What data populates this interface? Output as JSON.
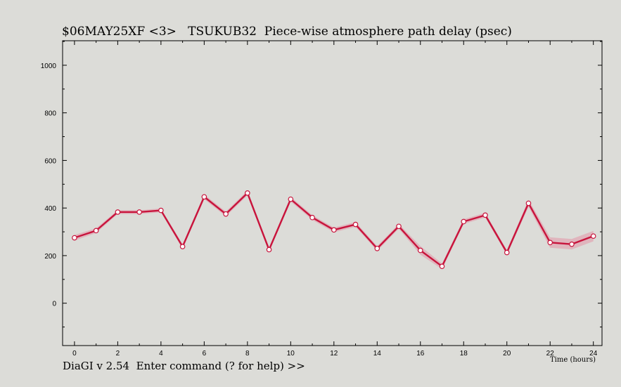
{
  "window": {
    "title": "$06MAY25XF <3>   TSUKUB32  Piece-wise atmosphere path delay (psec)",
    "prompt": "DiaGI v 2.54  Enter command (? for help) >>"
  },
  "colors": {
    "background": "#dcdcd8",
    "line": "#c8143c",
    "band": "#e2a8b4",
    "marker_fill": "#ffffff"
  },
  "chart_data": {
    "type": "line",
    "title": "$06MAY25XF <3>   TSUKUB32  Piece-wise atmosphere path delay (psec)",
    "xlabel": "Time (hours)",
    "ylabel": "",
    "xlim": [
      -0.55,
      24.4
    ],
    "ylim": [
      -178,
      1103
    ],
    "xticks": [
      0,
      2,
      4,
      6,
      8,
      10,
      12,
      14,
      16,
      18,
      20,
      22,
      24
    ],
    "yticks": [
      0,
      200,
      400,
      600,
      800,
      1000
    ],
    "grid": false,
    "series": [
      {
        "x": [
          0,
          1,
          2,
          3,
          4,
          5,
          6,
          7,
          8,
          9,
          10,
          11,
          12,
          13,
          14,
          15,
          16,
          17,
          18,
          19,
          20,
          21,
          22,
          23,
          24
        ],
        "values": [
          275,
          305,
          383,
          383,
          390,
          238,
          447,
          375,
          463,
          225,
          437,
          360,
          308,
          331,
          230,
          323,
          222,
          155,
          343,
          370,
          213,
          420,
          255,
          248,
          282
        ],
        "uncertainty": [
          12,
          10,
          8,
          8,
          8,
          10,
          10,
          10,
          10,
          10,
          10,
          10,
          10,
          10,
          10,
          10,
          18,
          12,
          10,
          10,
          10,
          15,
          22,
          22,
          22
        ]
      }
    ]
  }
}
